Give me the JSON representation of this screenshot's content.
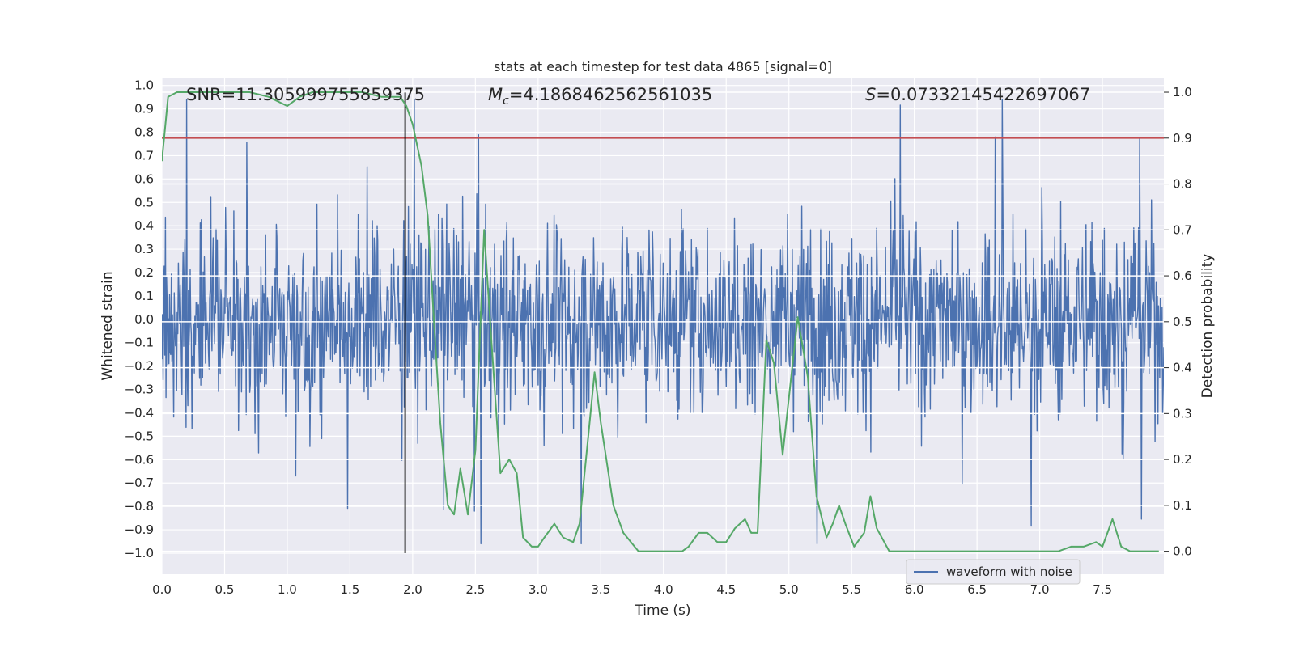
{
  "chart_data": {
    "type": "line",
    "title": "stats at each timestep for test data 4865 [signal=0]",
    "xlabel": "Time (s)",
    "ylabel_left": "Whitened strain",
    "ylabel_right": "Detection probability",
    "xlim": [
      0.0,
      7.99
    ],
    "ylim_left": [
      -1.09,
      1.03
    ],
    "ylim_right": [
      -0.05,
      1.03
    ],
    "x_ticks": [
      0.0,
      0.5,
      1.0,
      1.5,
      2.0,
      2.5,
      3.0,
      3.5,
      4.0,
      4.5,
      5.0,
      5.5,
      6.0,
      6.5,
      7.0,
      7.5
    ],
    "x_tick_labels": [
      "0.0",
      "0.5",
      "1.0",
      "1.5",
      "2.0",
      "2.5",
      "3.0",
      "3.5",
      "4.0",
      "4.5",
      "5.0",
      "5.5",
      "6.0",
      "6.5",
      "7.0",
      "7.5"
    ],
    "y_left_ticks": [
      1.0,
      0.9,
      0.8,
      0.7,
      0.6,
      0.5,
      0.4,
      0.3,
      0.2,
      0.1,
      0.0,
      -0.1,
      -0.2,
      -0.3,
      -0.4,
      -0.5,
      -0.6,
      -0.7,
      -0.8,
      -0.9,
      -1.0
    ],
    "y_left_tick_labels": [
      "1.0",
      "0.9",
      "0.8",
      "0.7",
      "0.6",
      "0.5",
      "0.4",
      "0.3",
      "0.2",
      "0.1",
      "0.0",
      "−0.1",
      "−0.2",
      "−0.3",
      "−0.4",
      "−0.5",
      "−0.6",
      "−0.7",
      "−0.8",
      "−0.9",
      "−1.0"
    ],
    "y_right_ticks": [
      1.0,
      0.9,
      0.8,
      0.7,
      0.6,
      0.5,
      0.4,
      0.3,
      0.2,
      0.1,
      0.0
    ],
    "y_right_tick_labels": [
      "1.0",
      "0.9",
      "0.8",
      "0.7",
      "0.6",
      "0.5",
      "0.4",
      "0.3",
      "0.2",
      "0.1",
      "0.0"
    ],
    "annotations": {
      "snr": "SNR=11.305999755859375",
      "mc_symbol": "M",
      "mc_sub": "c",
      "mc_value": "=4.1868462562561035",
      "s_symbol": "S",
      "s_value": "=0.07332145422697067"
    },
    "legend": {
      "position": "lower-right",
      "entries": [
        "waveform with noise"
      ]
    },
    "colors": {
      "waveform": "#4c72b0",
      "probability": "#55a868",
      "threshold": "#c44e52",
      "marker": "#000000",
      "background": "#eaeaf2",
      "grid": "#ffffff"
    },
    "waveform": {
      "name": "waveform with noise",
      "axis": "left",
      "x_range": [
        0.0,
        7.99
      ],
      "approx_envelope": [
        -0.95,
        0.95
      ],
      "style": "dense noise"
    },
    "threshold_line": {
      "axis": "right",
      "y": 0.9
    },
    "vertical_marker": {
      "x": 1.94,
      "y_range": [
        -1.0,
        0.97
      ]
    },
    "probability": {
      "axis": "right",
      "x": [
        0.0,
        0.05,
        0.12,
        0.3,
        0.5,
        0.7,
        0.85,
        1.0,
        1.1,
        1.2,
        1.4,
        1.6,
        1.75,
        1.8,
        1.9,
        1.95,
        2.0,
        2.07,
        2.12,
        2.17,
        2.22,
        2.28,
        2.33,
        2.38,
        2.44,
        2.5,
        2.57,
        2.63,
        2.7,
        2.77,
        2.83,
        2.88,
        2.95,
        3.0,
        3.05,
        3.13,
        3.2,
        3.28,
        3.33,
        3.4,
        3.45,
        3.5,
        3.6,
        3.68,
        3.8,
        4.0,
        4.15,
        4.2,
        4.28,
        4.35,
        4.43,
        4.5,
        4.57,
        4.65,
        4.7,
        4.75,
        4.82,
        4.88,
        4.95,
        5.07,
        5.15,
        5.22,
        5.3,
        5.35,
        5.4,
        5.45,
        5.52,
        5.6,
        5.65,
        5.7,
        5.8,
        6.0,
        6.2,
        6.35,
        6.45,
        6.55,
        6.8,
        7.0,
        7.15,
        7.25,
        7.35,
        7.45,
        7.5,
        7.58,
        7.65,
        7.72,
        7.8,
        7.88,
        7.95
      ],
      "y": [
        0.85,
        0.99,
        1.0,
        1.0,
        1.0,
        1.0,
        0.99,
        0.97,
        0.99,
        1.0,
        1.0,
        1.0,
        0.99,
        0.99,
        0.99,
        0.97,
        0.93,
        0.84,
        0.73,
        0.5,
        0.28,
        0.1,
        0.08,
        0.18,
        0.08,
        0.22,
        0.7,
        0.45,
        0.17,
        0.2,
        0.17,
        0.03,
        0.01,
        0.01,
        0.03,
        0.06,
        0.03,
        0.02,
        0.06,
        0.25,
        0.39,
        0.28,
        0.1,
        0.04,
        0.0,
        0.0,
        0.0,
        0.01,
        0.04,
        0.04,
        0.02,
        0.02,
        0.05,
        0.07,
        0.04,
        0.04,
        0.46,
        0.41,
        0.21,
        0.51,
        0.38,
        0.12,
        0.03,
        0.06,
        0.1,
        0.06,
        0.01,
        0.04,
        0.12,
        0.05,
        0.0,
        0.0,
        0.0,
        0.0,
        0.0,
        0.0,
        0.0,
        0.0,
        0.0,
        0.01,
        0.01,
        0.02,
        0.01,
        0.07,
        0.01,
        0.0,
        0.0,
        0.0,
        0.0
      ]
    }
  }
}
